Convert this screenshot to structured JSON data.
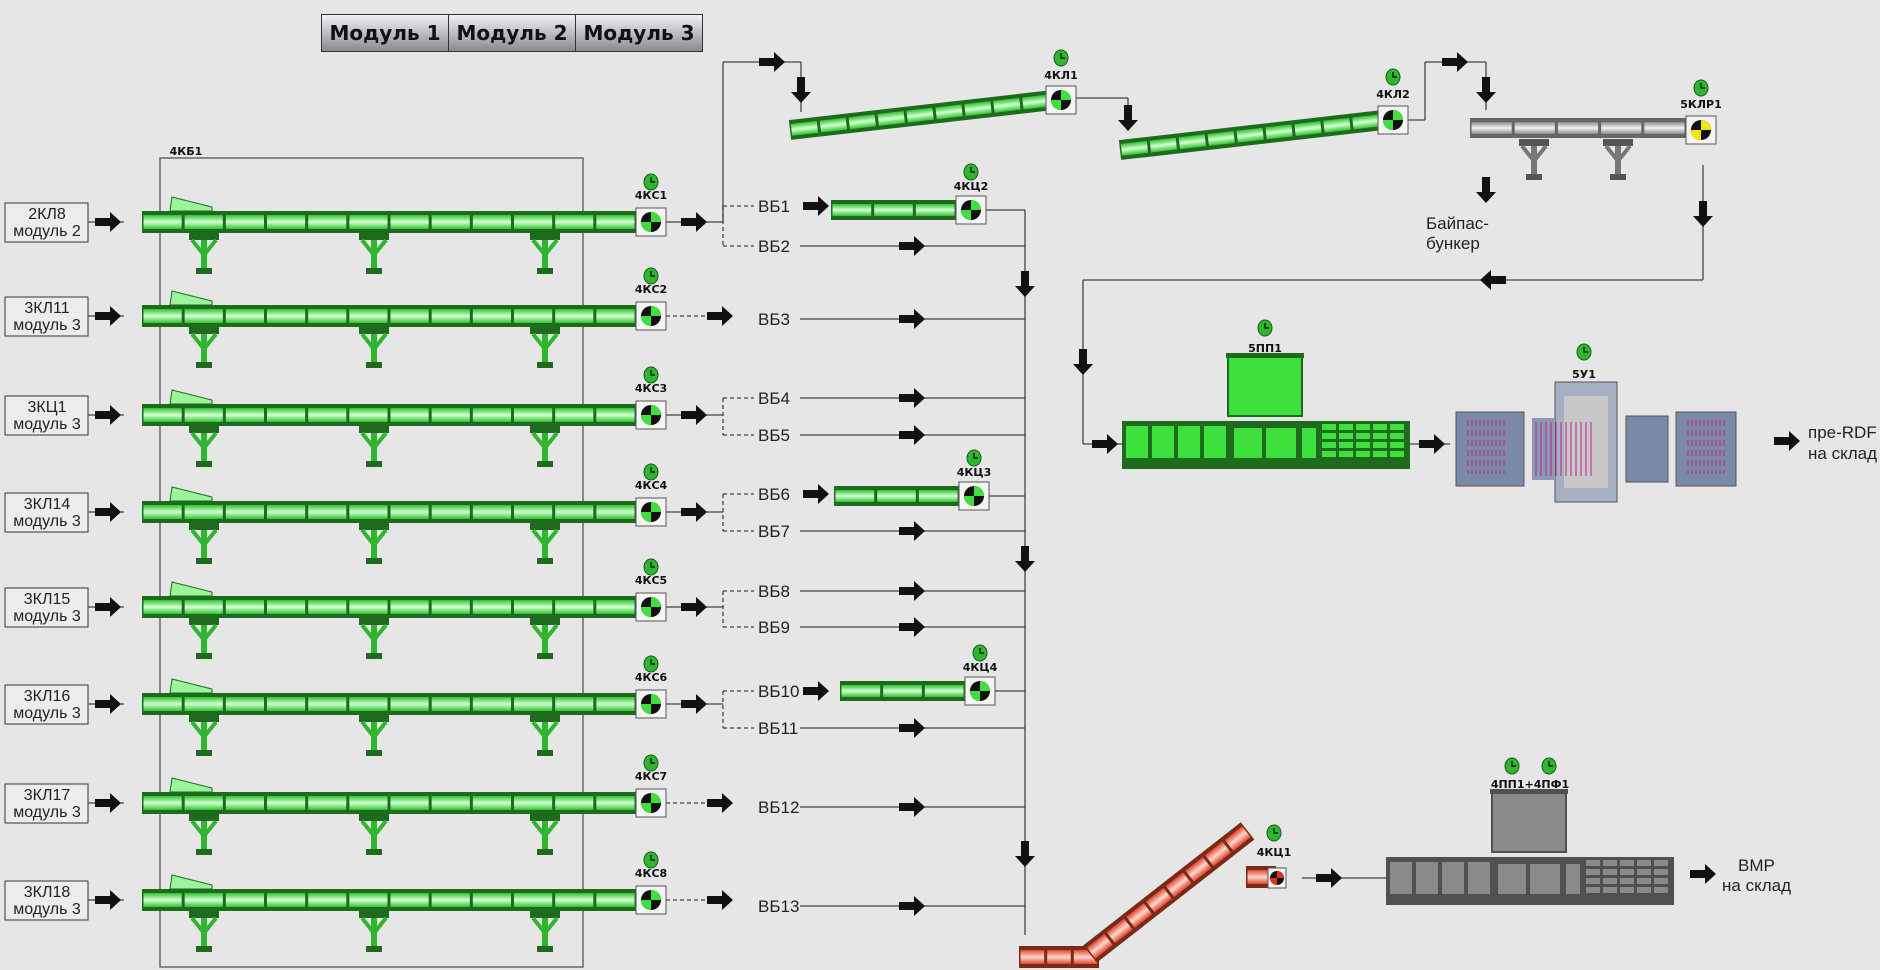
{
  "tabs": [
    "Модуль 1",
    "Модуль 2",
    "Модуль 3"
  ],
  "colors": {
    "background": "#e6e6e6",
    "running": "#3de03d",
    "running_dark": "#1e6b1e",
    "stopped": "#808080",
    "fault": "#d9412b",
    "clock": "#2fb52f"
  },
  "buffer_label": "4КБ1",
  "rows": [
    {
      "input": [
        "2КЛ8",
        "модуль 2"
      ],
      "motor": "4КС1",
      "mode": "fork",
      "branches": [
        {
          "label": "ВБ1",
          "target": "4КЦ2"
        },
        {
          "label": "ВБ2",
          "target": "collector"
        }
      ]
    },
    {
      "input": [
        "3КЛ11",
        "модуль 3"
      ],
      "motor": "4КС2",
      "mode": "direct",
      "branches": [
        {
          "label": "ВБ3",
          "target": "collector"
        }
      ]
    },
    {
      "input": [
        "3КЦ1",
        "модуль 3"
      ],
      "motor": "4КС3",
      "mode": "fork",
      "branches": [
        {
          "label": "ВБ4",
          "target": "collector"
        },
        {
          "label": "ВБ5",
          "target": "collector"
        }
      ]
    },
    {
      "input": [
        "3КЛ14",
        "модуль 3"
      ],
      "motor": "4КС4",
      "mode": "fork",
      "branches": [
        {
          "label": "ВБ6",
          "target": "4КЦ3"
        },
        {
          "label": "ВБ7",
          "target": "collector"
        }
      ]
    },
    {
      "input": [
        "3КЛ15",
        "модуль 3"
      ],
      "motor": "4КС5",
      "mode": "fork",
      "branches": [
        {
          "label": "ВБ8",
          "target": "collector"
        },
        {
          "label": "ВБ9",
          "target": "collector"
        }
      ]
    },
    {
      "input": [
        "3КЛ16",
        "модуль 3"
      ],
      "motor": "4КС6",
      "mode": "fork",
      "branches": [
        {
          "label": "ВБ10",
          "target": "4КЦ4"
        },
        {
          "label": "ВБ11",
          "target": "collector"
        }
      ]
    },
    {
      "input": [
        "3КЛ17",
        "модуль 3"
      ],
      "motor": "4КС7",
      "mode": "direct",
      "branches": [
        {
          "label": "ВБ12",
          "target": "collector"
        }
      ]
    },
    {
      "input": [
        "3КЛ18",
        "модуль 3"
      ],
      "motor": "4КС8",
      "mode": "direct",
      "branches": [
        {
          "label": "ВБ13",
          "target": "collector"
        }
      ]
    }
  ],
  "short_conveyors": [
    "4КЦ2",
    "4КЦ3",
    "4КЦ4"
  ],
  "incline1": "4КЛ1",
  "incline2": "4КЛ2",
  "reversible": "5КЛР1",
  "bypass": [
    "Байпас-",
    "бункер"
  ],
  "baler_main": "5ПП1",
  "wrapper": "5У1",
  "output_rdf": [
    "пре-RDF",
    "на склад"
  ],
  "red_conveyor": "4КЦ1",
  "baler_vmr": "4ПП1+4ПФ1",
  "output_vmr": [
    "ВМР",
    "на склад"
  ]
}
